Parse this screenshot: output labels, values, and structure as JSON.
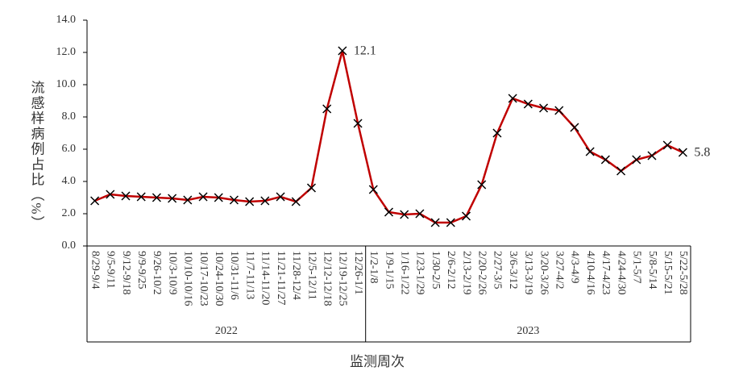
{
  "chart_data": {
    "type": "line",
    "y_label": "流感样病例占比（%）",
    "x_label": "监测周次",
    "categories": [
      "8/29-9/4",
      "9/5-9/11",
      "9/12-9/18",
      "9/9-9/25",
      "9/26-10/2",
      "10/3-10/9",
      "10/10-10/16",
      "10/17-10/23",
      "10/24-10/30",
      "10/31-11/6",
      "11/7-11/13",
      "11/14-11/20",
      "11/21-11/27",
      "11/28-12/4",
      "12/5-12/11",
      "12/12-12/18",
      "12/19-12/25",
      "12/26-1/1",
      "1/2-1/8",
      "1/9-1/15",
      "1/16-1/22",
      "1/23-1/29",
      "1/30-2/5",
      "2/6-2/12",
      "2/13-2/19",
      "2/20-2/26",
      "2/27-3/5",
      "3/6-3/12",
      "3/13-3/19",
      "3/20-3/26",
      "3/27-4/2",
      "4/3-4/9",
      "4/10-4/16",
      "4/17-4/23",
      "4/24-4/30",
      "5/1-5/7",
      "5/8-5/14",
      "5/15-5/21",
      "5/22-5/28"
    ],
    "x_groups": [
      {
        "label": "2022",
        "size": 18
      },
      {
        "label": "2023",
        "size": 21
      }
    ],
    "values": [
      2.8,
      3.2,
      3.1,
      3.05,
      3.0,
      2.95,
      2.85,
      3.05,
      3.0,
      2.85,
      2.75,
      2.8,
      3.05,
      2.75,
      3.6,
      8.5,
      12.1,
      7.6,
      3.5,
      2.1,
      1.95,
      2.0,
      1.45,
      1.45,
      1.85,
      3.8,
      7.0,
      9.15,
      8.8,
      8.55,
      8.4,
      7.35,
      5.85,
      5.35,
      4.65,
      5.35,
      5.6,
      6.25,
      5.8
    ],
    "value_labels": [
      null,
      null,
      null,
      null,
      null,
      null,
      null,
      null,
      null,
      null,
      null,
      null,
      null,
      null,
      null,
      null,
      "12.1",
      null,
      null,
      null,
      null,
      null,
      null,
      null,
      null,
      null,
      null,
      null,
      null,
      null,
      null,
      null,
      null,
      null,
      null,
      null,
      null,
      null,
      "5.8"
    ],
    "color": "#c00000",
    "marker_color": "#000000",
    "ylim": [
      0,
      14
    ],
    "yticks": [
      {
        "value": 0,
        "label": "0.0"
      },
      {
        "value": 2,
        "label": "2.0"
      },
      {
        "value": 4,
        "label": "4.0"
      },
      {
        "value": 6,
        "label": "6.0"
      },
      {
        "value": 8,
        "label": "8.0"
      },
      {
        "value": 10,
        "label": "10.0"
      },
      {
        "value": 12,
        "label": "12.0"
      },
      {
        "value": 14,
        "label": "14.0"
      }
    ]
  }
}
